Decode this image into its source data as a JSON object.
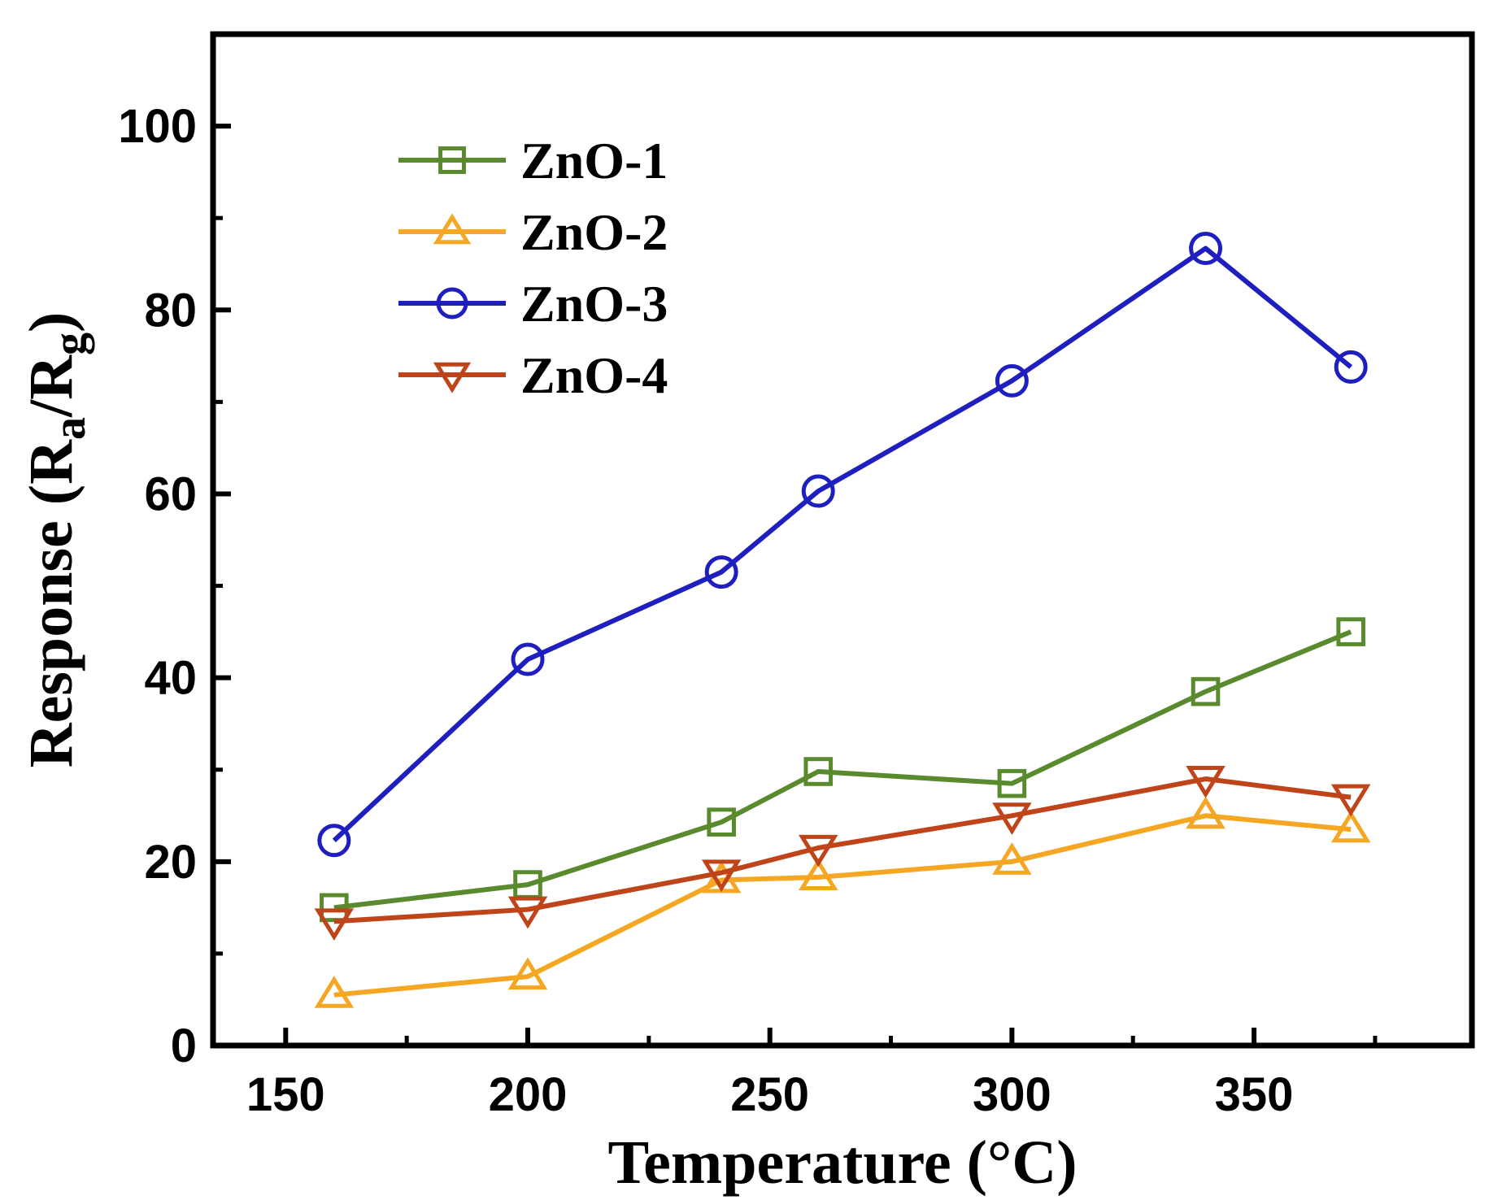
{
  "chart_data": {
    "type": "line",
    "title": "",
    "xlabel": "Temperature (°C)",
    "ylabel": {
      "prefix": "Response (R",
      "sub1": "a",
      "mid": "/R",
      "sub2": "g",
      "suffix": ")"
    },
    "xlim": [
      135,
      395
    ],
    "ylim": [
      0,
      110
    ],
    "xticks": [
      150,
      200,
      250,
      300,
      350
    ],
    "yticks": [
      0,
      20,
      40,
      60,
      80,
      100
    ],
    "legend_position": "top-left",
    "series": [
      {
        "name": "ZnO-1",
        "color": "#5a8a2e",
        "marker": "square",
        "x": [
          160,
          200,
          240,
          260,
          300,
          340,
          370
        ],
        "y": [
          15,
          17.5,
          24.3,
          29.8,
          28.5,
          38.5,
          45
        ]
      },
      {
        "name": "ZnO-2",
        "color": "#f5a623",
        "marker": "triangle-up",
        "x": [
          160,
          200,
          240,
          260,
          300,
          340,
          370
        ],
        "y": [
          5.5,
          7.5,
          18,
          18.3,
          20,
          25,
          23.5
        ]
      },
      {
        "name": "ZnO-3",
        "color": "#1f1fbf",
        "marker": "circle",
        "x": [
          160,
          200,
          240,
          260,
          300,
          340,
          370
        ],
        "y": [
          22.3,
          42,
          51.5,
          60.3,
          72.3,
          86.7,
          73.8
        ]
      },
      {
        "name": "ZnO-4",
        "color": "#c0441a",
        "marker": "triangle-down",
        "x": [
          160,
          200,
          240,
          260,
          300,
          340,
          370
        ],
        "y": [
          13.5,
          14.8,
          18.8,
          21.5,
          25,
          29,
          27
        ]
      }
    ]
  }
}
